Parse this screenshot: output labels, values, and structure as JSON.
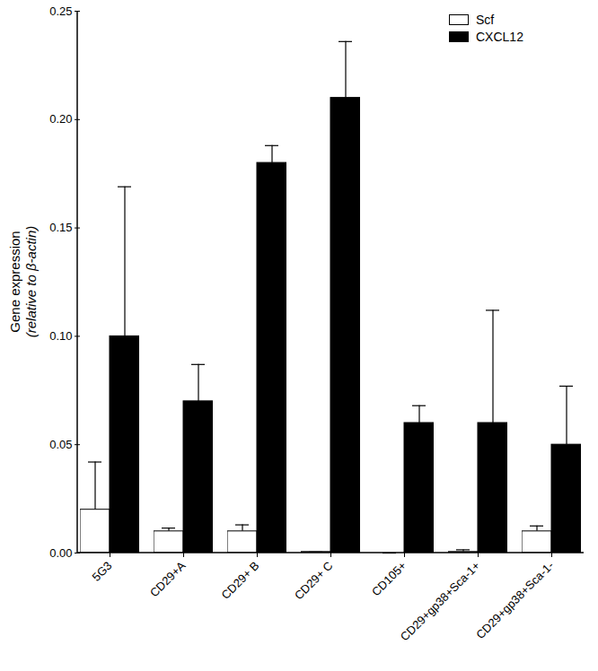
{
  "chart_data": {
    "type": "bar",
    "categories": [
      "5G3",
      "CD29+A",
      "CD29+ B",
      "CD29+ C",
      "CD105+",
      "CD29+gp38+Sca-1+",
      "CD29+gp38+Sca-1-"
    ],
    "series": [
      {
        "name": "Scf",
        "color": "#ffffff",
        "values": [
          0.02,
          0.01,
          0.01,
          0.0005,
          0,
          0.0005,
          0.01
        ],
        "errors": [
          0.022,
          0.0015,
          0.003,
          0,
          0,
          0.001,
          0.0025
        ]
      },
      {
        "name": "CXCL12",
        "color": "#000000",
        "values": [
          0.1,
          0.07,
          0.18,
          0.21,
          0.06,
          0.06,
          0.05
        ],
        "errors": [
          0.069,
          0.017,
          0.008,
          0.026,
          0.008,
          0.052,
          0.027
        ]
      }
    ],
    "y_label": "Gene expression",
    "y_sublabel": "(relative to β-actin)",
    "ylim": [
      0,
      0.25
    ],
    "yticks": [
      {
        "value": 0,
        "label": "0.00"
      },
      {
        "value": 0.05,
        "label": "0.05"
      },
      {
        "value": 0.1,
        "label": "0.10"
      },
      {
        "value": 0.15,
        "label": "0.15"
      },
      {
        "value": 0.2,
        "label": "0.20"
      },
      {
        "value": 0.25,
        "label": "0.25"
      }
    ],
    "legend": "top-right",
    "grid": false
  }
}
